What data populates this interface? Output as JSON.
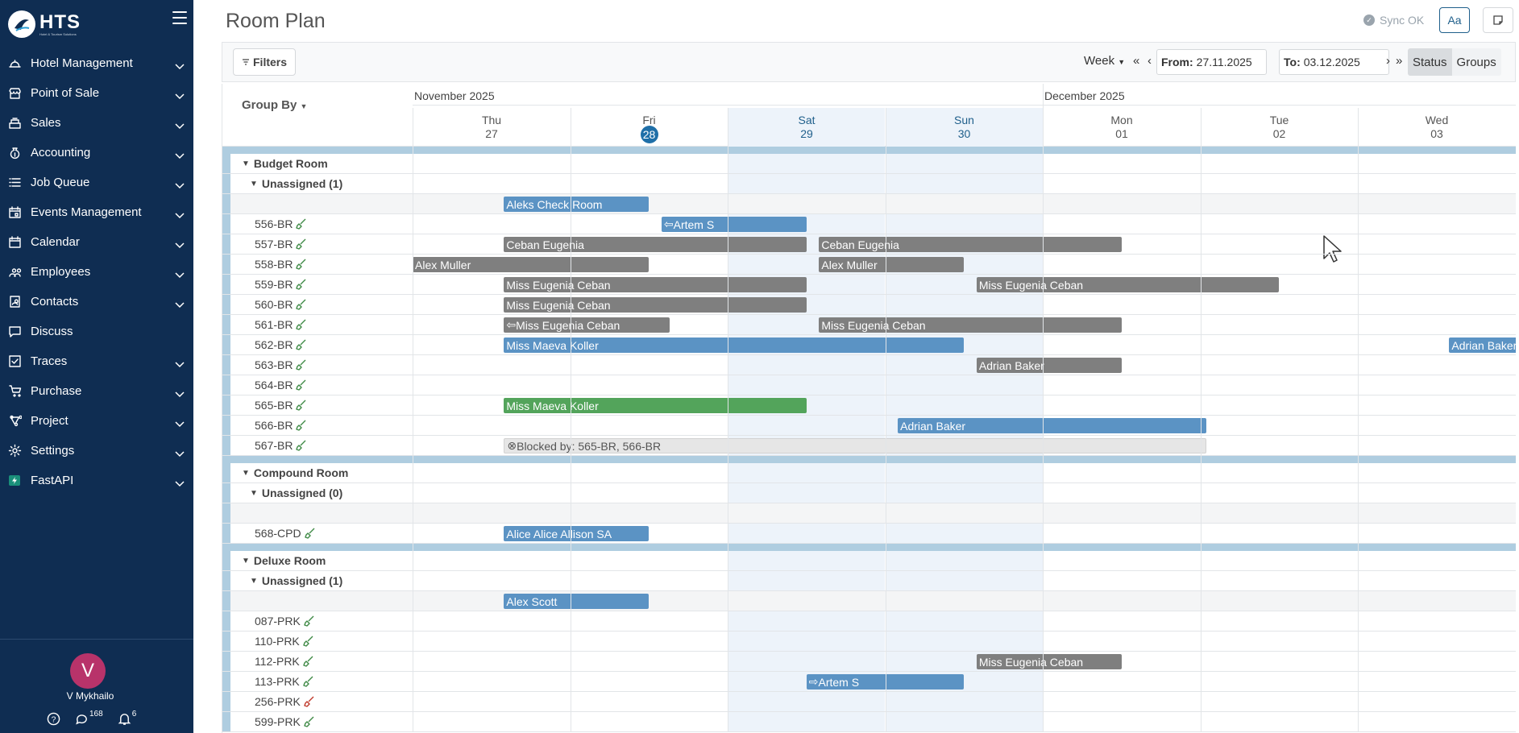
{
  "app": {
    "logo_text": "HTS",
    "logo_sub": "Hotel & Tourism Solutions"
  },
  "sidebar": {
    "items": [
      {
        "label": "Hotel Management",
        "icon": "hotel-bell-icon",
        "has_chevron": true
      },
      {
        "label": "Point of Sale",
        "icon": "store-icon",
        "has_chevron": true
      },
      {
        "label": "Sales",
        "icon": "cash-register-icon",
        "has_chevron": true
      },
      {
        "label": "Accounting",
        "icon": "money-bag-icon",
        "has_chevron": true
      },
      {
        "label": "Job Queue",
        "icon": "list-icon",
        "has_chevron": true
      },
      {
        "label": "Events Management",
        "icon": "calendar-event-icon",
        "has_chevron": true
      },
      {
        "label": "Calendar",
        "icon": "calendar-icon",
        "has_chevron": true
      },
      {
        "label": "Employees",
        "icon": "people-icon",
        "has_chevron": true
      },
      {
        "label": "Contacts",
        "icon": "address-book-icon",
        "has_chevron": true
      },
      {
        "label": "Discuss",
        "icon": "chat-icon",
        "has_chevron": false
      },
      {
        "label": "Traces",
        "icon": "checkbox-icon",
        "has_chevron": true
      },
      {
        "label": "Purchase",
        "icon": "purchase-icon",
        "has_chevron": true
      },
      {
        "label": "Project",
        "icon": "project-icon",
        "has_chevron": true
      },
      {
        "label": "Settings",
        "icon": "gear-icon",
        "has_chevron": true
      },
      {
        "label": "FastAPI",
        "icon": "fastapi-icon",
        "has_chevron": true
      }
    ],
    "user": {
      "initial": "V",
      "name": "V Mykhailo"
    },
    "footer": {
      "messages_count": "168",
      "notifications_count": "6"
    }
  },
  "header": {
    "title": "Room Plan",
    "sync_status": "Sync OK",
    "font_button": "Aa"
  },
  "toolbar": {
    "filters_label": "Filters",
    "period": "Week",
    "from_label": "From:",
    "from_value": "27.11.2025",
    "to_label": "To:",
    "to_value": "03.12.2025",
    "first": "«",
    "prev": "‹",
    "next": "›",
    "last": "»",
    "status_label": "Status",
    "groups_label": "Groups"
  },
  "grid": {
    "group_by_label": "Group By",
    "months": [
      "November 2025",
      "December 2025"
    ],
    "days": [
      {
        "name": "Thu",
        "date": "27",
        "weekend": false,
        "today": false
      },
      {
        "name": "Fri",
        "date": "28",
        "weekend": false,
        "today": true
      },
      {
        "name": "Sat",
        "date": "29",
        "weekend": true,
        "today": false
      },
      {
        "name": "Sun",
        "date": "30",
        "weekend": true,
        "today": false
      },
      {
        "name": "Mon",
        "date": "01",
        "weekend": false,
        "today": false
      },
      {
        "name": "Tue",
        "date": "02",
        "weekend": false,
        "today": false
      },
      {
        "name": "Wed",
        "date": "03",
        "weekend": false,
        "today": false
      }
    ],
    "sections": [
      {
        "category": "Budget Room",
        "unassigned_label": "Unassigned (1)",
        "unassigned_bookings": [
          {
            "guest": "Aleks Check Room",
            "color": "blue",
            "start": 0.58,
            "end": 1.5,
            "arrow": ""
          }
        ],
        "rooms": [
          {
            "room": "556-BR",
            "clean": true,
            "bookings": [
              {
                "guest": "Artem S",
                "color": "blue",
                "start": 1.58,
                "end": 2.5,
                "arrow": "⇦ "
              }
            ]
          },
          {
            "room": "557-BR",
            "clean": true,
            "bookings": [
              {
                "guest": "Ceban Eugenia",
                "color": "gray",
                "start": 0.58,
                "end": 2.5,
                "arrow": ""
              },
              {
                "guest": "Ceban Eugenia",
                "color": "gray",
                "start": 2.58,
                "end": 4.5,
                "arrow": ""
              }
            ]
          },
          {
            "room": "558-BR",
            "clean": true,
            "bookings": [
              {
                "guest": "Alex Muller",
                "color": "gray",
                "start": 0.0,
                "end": 1.5,
                "arrow": ""
              },
              {
                "guest": "Alex Muller",
                "color": "gray",
                "start": 2.58,
                "end": 3.5,
                "arrow": ""
              }
            ]
          },
          {
            "room": "559-BR",
            "clean": true,
            "bookings": [
              {
                "guest": "Miss Eugenia Ceban",
                "color": "gray",
                "start": 0.58,
                "end": 2.5,
                "arrow": ""
              },
              {
                "guest": "Miss Eugenia Ceban",
                "color": "gray",
                "start": 3.58,
                "end": 5.5,
                "arrow": ""
              }
            ]
          },
          {
            "room": "560-BR",
            "clean": true,
            "bookings": [
              {
                "guest": "Miss Eugenia Ceban",
                "color": "gray",
                "start": 0.58,
                "end": 2.5,
                "arrow": ""
              }
            ]
          },
          {
            "room": "561-BR",
            "clean": true,
            "bookings": [
              {
                "guest": "Miss Eugenia Ceban",
                "color": "gray",
                "start": 0.58,
                "end": 1.63,
                "arrow": "⇦ "
              },
              {
                "guest": "Miss Eugenia Ceban",
                "color": "gray",
                "start": 2.58,
                "end": 4.5,
                "arrow": ""
              }
            ]
          },
          {
            "room": "562-BR",
            "clean": true,
            "bookings": [
              {
                "guest": "Miss Maeva Koller",
                "color": "blue",
                "start": 0.58,
                "end": 3.5,
                "arrow": ""
              },
              {
                "guest": "Adrian Baker",
                "color": "blue",
                "start": 6.58,
                "end": 7.5,
                "arrow": ""
              }
            ]
          },
          {
            "room": "563-BR",
            "clean": true,
            "bookings": [
              {
                "guest": "Adrian Baker",
                "color": "gray",
                "start": 3.58,
                "end": 4.5,
                "arrow": ""
              }
            ]
          },
          {
            "room": "564-BR",
            "clean": true,
            "bookings": []
          },
          {
            "room": "565-BR",
            "clean": true,
            "bookings": [
              {
                "guest": "Miss Maeva Koller",
                "color": "green",
                "start": 0.58,
                "end": 2.5,
                "arrow": ""
              }
            ]
          },
          {
            "room": "566-BR",
            "clean": true,
            "bookings": [
              {
                "guest": "Adrian Baker",
                "color": "blue",
                "start": 3.08,
                "end": 5.04,
                "arrow": ""
              }
            ]
          },
          {
            "room": "567-BR",
            "clean": true,
            "bookings": [
              {
                "guest": "Blocked by: 565-BR, 566-BR",
                "color": "blocked",
                "start": 0.58,
                "end": 5.04,
                "arrow": "⊗"
              }
            ]
          }
        ]
      },
      {
        "category": "Compound Room",
        "unassigned_label": "Unassigned (0)",
        "unassigned_bookings": [],
        "rooms": [
          {
            "room": "568-CPD",
            "clean": true,
            "bookings": [
              {
                "guest": "Alice Alice Allison SA",
                "color": "blue",
                "start": 0.58,
                "end": 1.5,
                "arrow": ""
              }
            ]
          }
        ]
      },
      {
        "category": "Deluxe Room",
        "unassigned_label": "Unassigned (1)",
        "unassigned_bookings": [
          {
            "guest": "Alex Scott",
            "color": "blue",
            "start": 0.58,
            "end": 1.5,
            "arrow": ""
          }
        ],
        "rooms": [
          {
            "room": "087-PRK",
            "clean": true,
            "bookings": []
          },
          {
            "room": "110-PRK",
            "clean": true,
            "bookings": []
          },
          {
            "room": "112-PRK",
            "clean": true,
            "bookings": [
              {
                "guest": "Miss Eugenia Ceban",
                "color": "gray",
                "start": 3.58,
                "end": 4.5,
                "arrow": ""
              }
            ]
          },
          {
            "room": "113-PRK",
            "clean": true,
            "bookings": [
              {
                "guest": "Artem S",
                "color": "blue",
                "start": 2.5,
                "end": 3.5,
                "arrow": "⇨ "
              }
            ]
          },
          {
            "room": "256-PRK",
            "clean": false,
            "bookings": []
          },
          {
            "room": "599-PRK",
            "clean": true,
            "bookings": []
          }
        ]
      }
    ]
  },
  "colors": {
    "sidebar_bg": "#0f2d52",
    "accent": "#1f6fa8",
    "clean": "#3f8a46",
    "dirty": "#c0392b"
  }
}
